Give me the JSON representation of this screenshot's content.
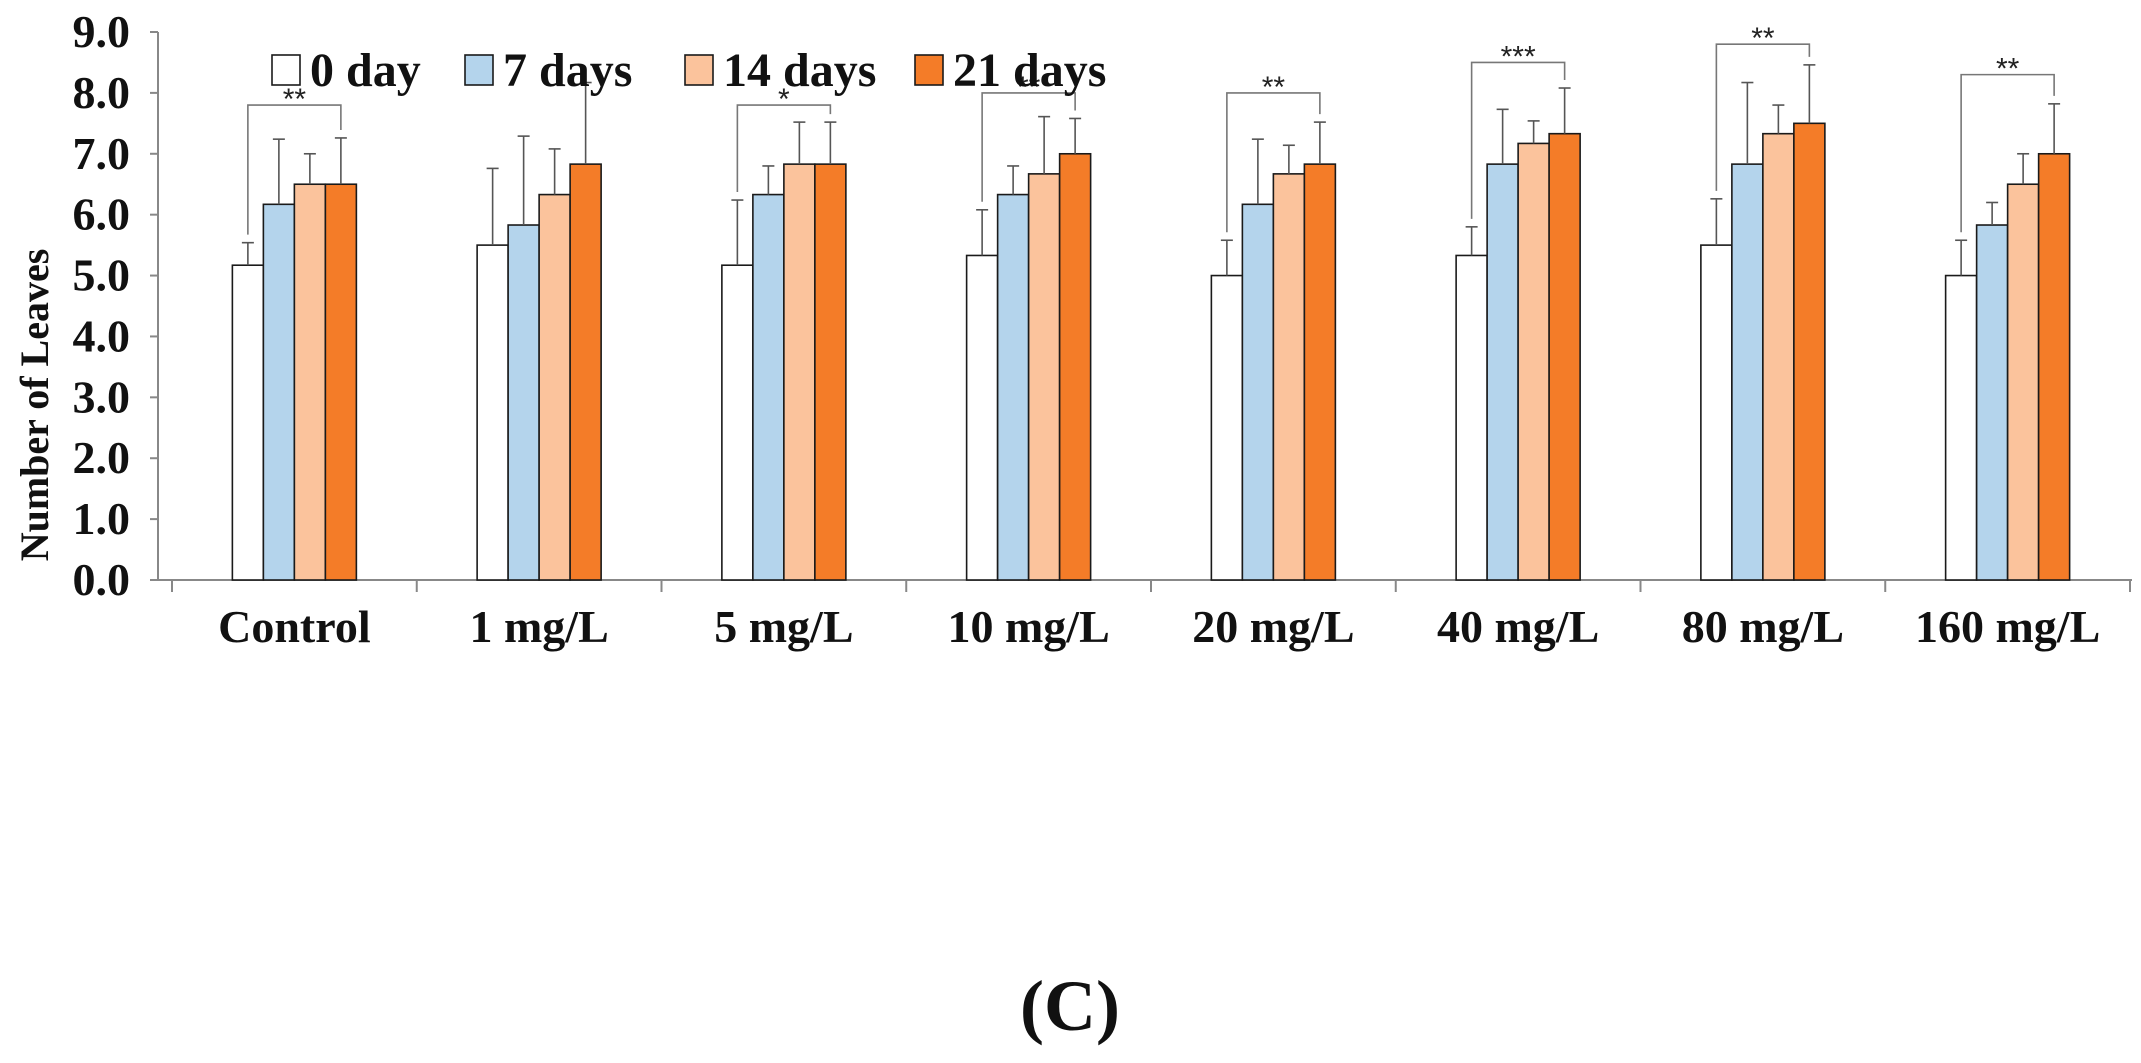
{
  "chart_data": {
    "type": "bar",
    "title": "",
    "panel_label": "(C)",
    "xlabel": "",
    "ylabel": "Number of Leaves",
    "ylim": [
      0,
      9
    ],
    "yticks": [
      "0.0",
      "1.0",
      "2.0",
      "3.0",
      "4.0",
      "5.0",
      "6.0",
      "7.0",
      "8.0",
      "9.0"
    ],
    "legend_position": "top-left",
    "categories": [
      "Control",
      "1 mg/L",
      "5 mg/L",
      "10 mg/L",
      "20 mg/L",
      "40 mg/L",
      "80 mg/L",
      "160 mg/L"
    ],
    "series": [
      {
        "name": "0 day",
        "color": "#ffffff",
        "values": [
          5.17,
          5.5,
          5.17,
          5.33,
          5.0,
          5.33,
          5.5,
          5.0
        ],
        "errors": [
          0.37,
          1.26,
          1.07,
          0.75,
          0.58,
          0.47,
          0.76,
          0.58
        ]
      },
      {
        "name": "7 days",
        "color": "#b4d4ec",
        "values": [
          6.17,
          5.83,
          6.33,
          6.33,
          6.17,
          6.83,
          6.83,
          5.83
        ],
        "errors": [
          1.07,
          1.46,
          0.47,
          0.47,
          1.07,
          0.9,
          1.34,
          0.37
        ]
      },
      {
        "name": "14 days",
        "color": "#fbc39c",
        "values": [
          6.5,
          6.33,
          6.83,
          6.67,
          6.67,
          7.17,
          7.33,
          6.5
        ],
        "errors": [
          0.5,
          0.75,
          0.69,
          0.94,
          0.47,
          0.37,
          0.47,
          0.5
        ]
      },
      {
        "name": "21 days",
        "color": "#f47c28",
        "values": [
          6.5,
          6.83,
          6.83,
          7.0,
          6.83,
          7.33,
          7.5,
          7.0
        ],
        "errors": [
          0.76,
          1.34,
          0.69,
          0.58,
          0.69,
          0.75,
          0.96,
          0.82
        ]
      }
    ],
    "significance": [
      {
        "category": "Control",
        "label": "**",
        "y": 7.8
      },
      {
        "category": "5 mg/L",
        "label": "*",
        "y": 7.8
      },
      {
        "category": "10 mg/L",
        "label": "**",
        "y": 8.0
      },
      {
        "category": "20 mg/L",
        "label": "**",
        "y": 8.0
      },
      {
        "category": "40 mg/L",
        "label": "***",
        "y": 8.5
      },
      {
        "category": "80 mg/L",
        "label": "**",
        "y": 8.8
      },
      {
        "category": "160 mg/L",
        "label": "**",
        "y": 8.3
      }
    ],
    "grid": false
  }
}
